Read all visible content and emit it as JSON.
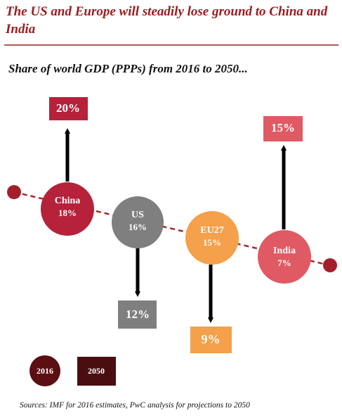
{
  "header": {
    "title": "The US and Europe will steadily lose ground to China and India",
    "subtitle": "Share of world GDP (PPPs) from 2016 to 2050..."
  },
  "nodes": [
    {
      "label": "China",
      "share_2016": "18%",
      "share_2050": "20%"
    },
    {
      "label": "US",
      "share_2016": "16%",
      "share_2050": "12%"
    },
    {
      "label": "EU27",
      "share_2016": "15%",
      "share_2050": "9%"
    },
    {
      "label": "India",
      "share_2016": "7%",
      "share_2050": "15%"
    }
  ],
  "legend": {
    "circle": "2016",
    "square": "2050"
  },
  "footer": {
    "source": "Sources: IMF for 2016 estimates, PwC analysis for projections to 2050"
  }
}
